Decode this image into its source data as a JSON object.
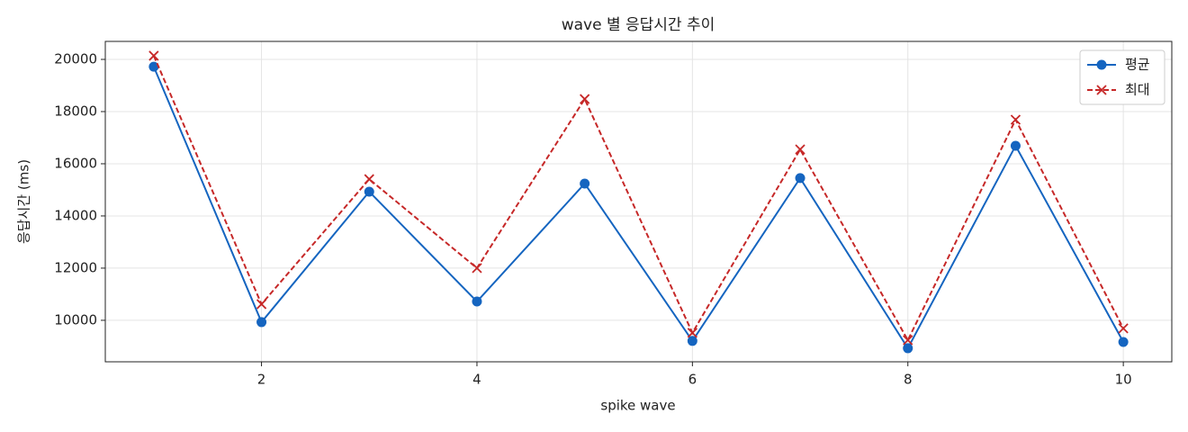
{
  "chart_data": {
    "type": "line",
    "title": "wave 별 응답시간 추이",
    "x_label": "spike wave",
    "y_label": "응답시간 (ms)",
    "x": [
      1,
      2,
      3,
      4,
      5,
      6,
      7,
      8,
      9,
      10
    ],
    "series": [
      {
        "name": "평균",
        "color": "#1565c0",
        "style": "solid",
        "marker": "circle",
        "values": [
          19720,
          9930,
          14930,
          10720,
          15240,
          9210,
          15450,
          8930,
          16690,
          9170
        ]
      },
      {
        "name": "최대",
        "color": "#c62828",
        "style": "dashed",
        "marker": "x",
        "values": [
          20140,
          10620,
          15410,
          12000,
          18480,
          9520,
          16550,
          9240,
          17690,
          9690
        ]
      }
    ],
    "xlim": [
      0.55,
      10.45
    ],
    "xticks": [
      2,
      4,
      6,
      8,
      10
    ],
    "ylim": [
      8410,
      20690
    ],
    "yticks": [
      10000,
      12000,
      14000,
      16000,
      18000,
      20000
    ],
    "grid": true,
    "legend": "upper right"
  }
}
